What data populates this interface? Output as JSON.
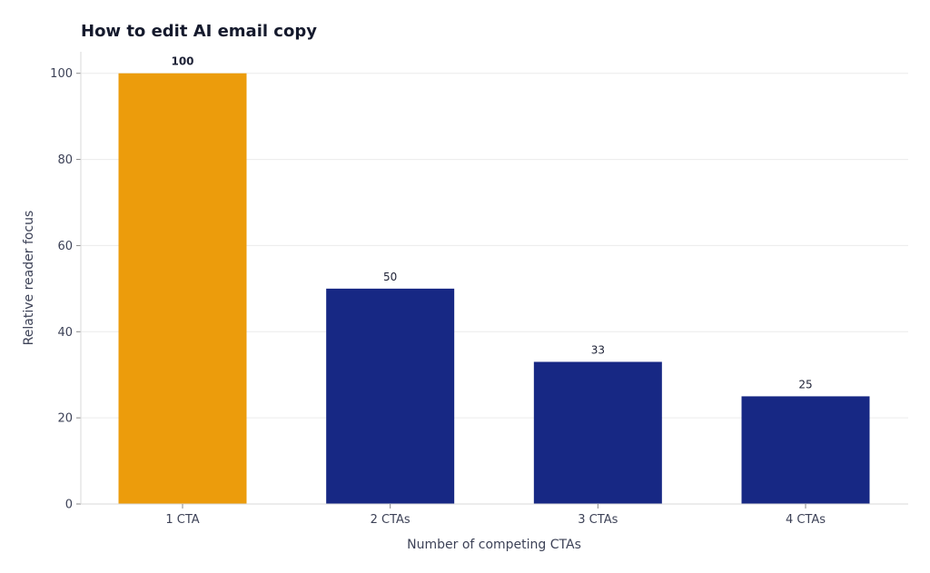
{
  "chart_data": {
    "type": "bar",
    "title": "How to edit AI email copy",
    "xlabel": "Number of competing CTAs",
    "ylabel": "Relative reader focus",
    "categories": [
      "1 CTA",
      "2 CTAs",
      "3 CTAs",
      "4 CTAs"
    ],
    "values": [
      100,
      50,
      33,
      25
    ],
    "data_labels": [
      "100",
      "50",
      "33",
      "25"
    ],
    "ylim": [
      0,
      105
    ],
    "yticks": [
      0,
      20,
      40,
      60,
      80,
      100
    ],
    "ytick_labels": [
      "0",
      "20",
      "40",
      "60",
      "80",
      "100"
    ],
    "grid": true,
    "legend": "none",
    "highlight_index": 0,
    "colors": {
      "highlight": "#ec9c0c",
      "default": "#172884",
      "highlight_label": "#e89a0a"
    }
  }
}
